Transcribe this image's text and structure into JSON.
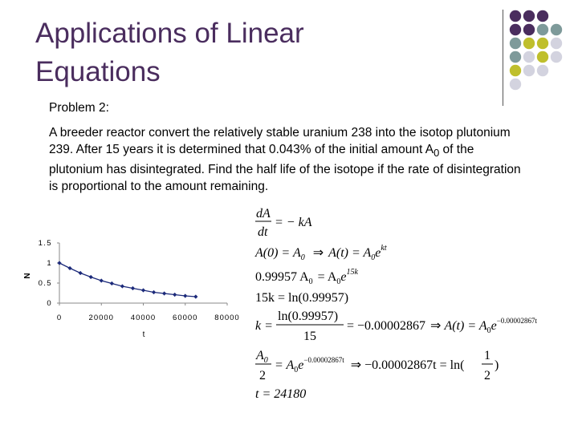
{
  "slide": {
    "title_line1": "Applications of Linear",
    "title_line2": "Equations",
    "problem_label": "Problem 2:",
    "problem_text": "A breeder reactor convert the relatively stable uranium 238 into the isotop plutonium 239. After 15 years it is determined that 0.043% of the initial amount A",
    "problem_sub": "0",
    "problem_text_end": " of the plutonium has disintegrated. Find the half life of the isotope if the rate of disintegration is proportional to the amount remaining."
  },
  "colors": {
    "title": "#4a2d5e",
    "dot_purple": "#4a2d5e",
    "dot_teal": "#7e9a9a",
    "dot_olive": "#bfbf2c",
    "dot_lavender": "#d3d3df",
    "chart_line": "#1c2a7a"
  },
  "decor_grid": [
    [
      "purple",
      "purple",
      "purple",
      null
    ],
    [
      "purple",
      "purple",
      "teal",
      "teal"
    ],
    [
      "teal",
      "olive",
      "olive",
      "lavender"
    ],
    [
      "teal",
      "lavender",
      "olive",
      "lavender"
    ],
    [
      "olive",
      "lavender",
      "lavender",
      null
    ],
    [
      "lavender",
      null,
      null,
      null
    ]
  ],
  "chart_data": {
    "type": "line",
    "title": "",
    "xlabel": "t",
    "ylabel": "N",
    "xlim": [
      0,
      80000
    ],
    "ylim": [
      0,
      1.5
    ],
    "x_ticks": [
      0,
      20000,
      40000,
      60000,
      80000
    ],
    "y_ticks": [
      0,
      0.5,
      1,
      1.5
    ],
    "y_tick_labels": [
      "0",
      "0.5",
      "1",
      "1.5"
    ],
    "grid": false,
    "series": [
      {
        "x": [
          0,
          5000,
          10000,
          15000,
          20000,
          25000,
          30000,
          35000,
          40000,
          45000,
          50000,
          55000,
          60000,
          65000
        ],
        "y": [
          1.0,
          0.87,
          0.75,
          0.65,
          0.56,
          0.49,
          0.42,
          0.37,
          0.32,
          0.27,
          0.24,
          0.21,
          0.18,
          0.16
        ]
      }
    ]
  },
  "math": {
    "eq1_num": "dA",
    "eq1_den": "dt",
    "eq1_rhs": "= − kA",
    "eq2_a": "A(0) = A",
    "eq2_sub": "0",
    "eq2_arrow": "⇒",
    "eq2_b": "A(t) = A",
    "eq2_b_sub": "0",
    "eq2_e": "e",
    "eq2_exp": "kt",
    "eq3_a": "0.99957 A",
    "eq3_sub": "0",
    "eq3_b": "= A",
    "eq3_b_sub": "0",
    "eq3_e": "e",
    "eq3_exp": "15k",
    "eq4": "15k = ln(0.99957)",
    "eq5_lhs": "k =",
    "eq5_num": "ln(0.99957)",
    "eq5_den": "15",
    "eq5_mid": "= −0.00002867",
    "eq5_arrow": "⇒",
    "eq5_rhs": "A(t) = A",
    "eq5_rhs_sub": "0",
    "eq5_e": "e",
    "eq5_exp": "−0.00002867t",
    "eq6_num": "A",
    "eq6_num_sub": "0",
    "eq6_den": "2",
    "eq6_mid": "= A",
    "eq6_mid_sub": "0",
    "eq6_e": "e",
    "eq6_exp": "−0.00002867t",
    "eq6_arrow": "⇒",
    "eq6_rhs": "−0.00002867t = ln(",
    "eq6_frac_num": "1",
    "eq6_frac_den": "2",
    "eq6_close": ")",
    "eq7": "t = 24180"
  }
}
